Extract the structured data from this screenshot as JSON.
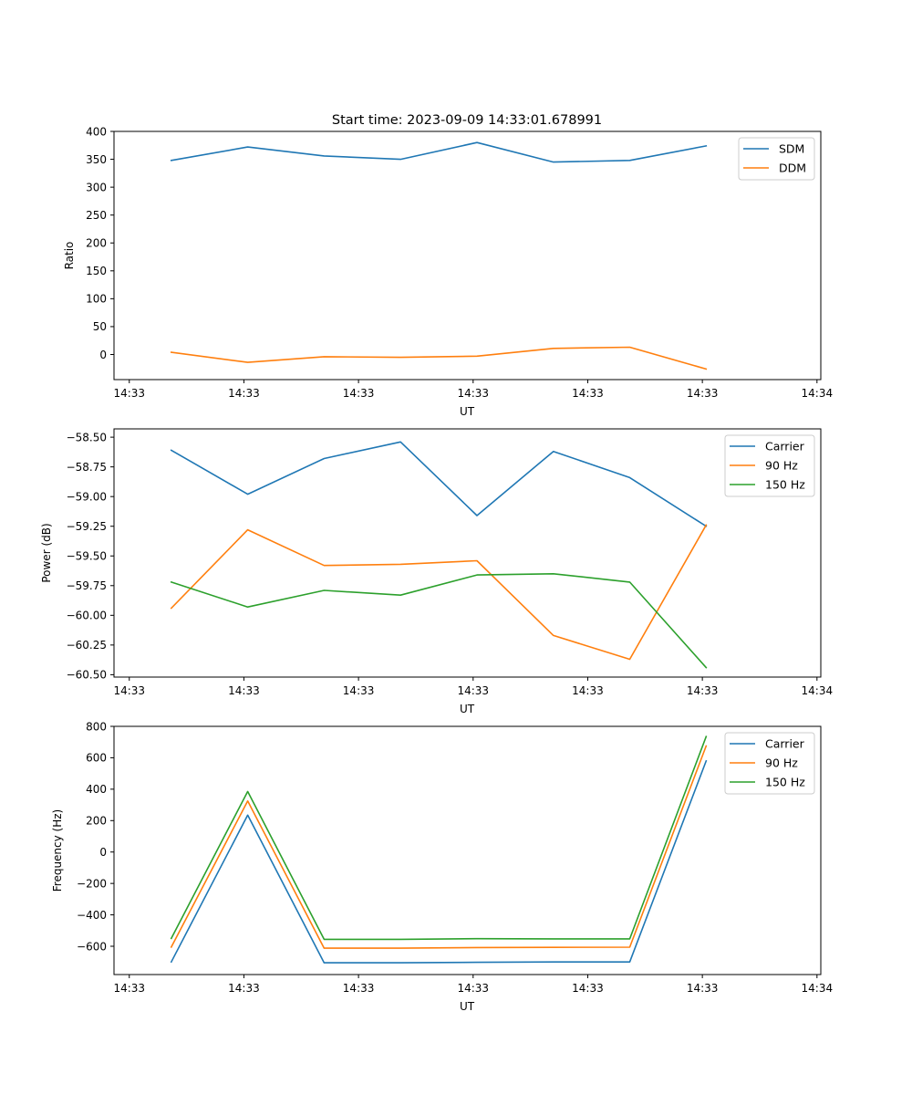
{
  "figure": {
    "title": "Start time: 2023-09-09 14:33:01.678991"
  },
  "colors": {
    "c0": "#1f77b4",
    "c1": "#ff7f0e",
    "c2": "#2ca02c"
  },
  "chart_data": [
    {
      "type": "line",
      "xlabel": "UT",
      "ylabel": "Ratio",
      "xlim": [
        -0.75,
        8.5
      ],
      "ylim": [
        -45,
        400
      ],
      "x_ticks": [
        {
          "v": -0.55,
          "label": "14:33"
        },
        {
          "v": 0.95,
          "label": "14:33"
        },
        {
          "v": 2.45,
          "label": "14:33"
        },
        {
          "v": 3.95,
          "label": "14:33"
        },
        {
          "v": 5.45,
          "label": "14:33"
        },
        {
          "v": 6.95,
          "label": "14:33"
        },
        {
          "v": 8.45,
          "label": "14:34"
        }
      ],
      "y_ticks": [
        {
          "v": 0,
          "label": "0"
        },
        {
          "v": 50,
          "label": "50"
        },
        {
          "v": 100,
          "label": "100"
        },
        {
          "v": 150,
          "label": "150"
        },
        {
          "v": 200,
          "label": "200"
        },
        {
          "v": 250,
          "label": "250"
        },
        {
          "v": 300,
          "label": "300"
        },
        {
          "v": 350,
          "label": "350"
        },
        {
          "v": 400,
          "label": "400"
        }
      ],
      "x": [
        0,
        1,
        2,
        3,
        4,
        5,
        6,
        7
      ],
      "series": [
        {
          "name": "SDM",
          "color": "#1f77b4",
          "values": [
            348,
            372,
            356,
            350,
            380,
            345,
            348,
            374
          ]
        },
        {
          "name": "DDM",
          "color": "#ff7f0e",
          "values": [
            4,
            -14,
            -4,
            -5,
            -3,
            11,
            13,
            -26
          ]
        }
      ],
      "legend": "upper right"
    },
    {
      "type": "line",
      "xlabel": "UT",
      "ylabel": "Power (dB)",
      "xlim": [
        -0.75,
        8.5
      ],
      "ylim": [
        -60.52,
        -58.43
      ],
      "x_ticks": [
        {
          "v": -0.55,
          "label": "14:33"
        },
        {
          "v": 0.95,
          "label": "14:33"
        },
        {
          "v": 2.45,
          "label": "14:33"
        },
        {
          "v": 3.95,
          "label": "14:33"
        },
        {
          "v": 5.45,
          "label": "14:33"
        },
        {
          "v": 6.95,
          "label": "14:33"
        },
        {
          "v": 8.45,
          "label": "14:34"
        }
      ],
      "y_ticks": [
        {
          "v": -60.5,
          "label": "−60.50"
        },
        {
          "v": -60.25,
          "label": "−60.25"
        },
        {
          "v": -60.0,
          "label": "−60.00"
        },
        {
          "v": -59.75,
          "label": "−59.75"
        },
        {
          "v": -59.5,
          "label": "−59.50"
        },
        {
          "v": -59.25,
          "label": "−59.25"
        },
        {
          "v": -59.0,
          "label": "−59.00"
        },
        {
          "v": -58.75,
          "label": "−58.75"
        },
        {
          "v": -58.5,
          "label": "−58.50"
        }
      ],
      "x": [
        0,
        1,
        2,
        3,
        4,
        5,
        6,
        7
      ],
      "series": [
        {
          "name": "Carrier",
          "color": "#1f77b4",
          "values": [
            -58.61,
            -58.98,
            -58.68,
            -58.54,
            -59.16,
            -58.62,
            -58.84,
            -59.25
          ]
        },
        {
          "name": "90 Hz",
          "color": "#ff7f0e",
          "values": [
            -59.94,
            -59.28,
            -59.58,
            -59.57,
            -59.54,
            -60.17,
            -60.37,
            -59.24
          ]
        },
        {
          "name": "150 Hz",
          "color": "#2ca02c",
          "values": [
            -59.72,
            -59.93,
            -59.79,
            -59.83,
            -59.66,
            -59.65,
            -59.72,
            -60.44
          ]
        }
      ],
      "legend": "upper right"
    },
    {
      "type": "line",
      "xlabel": "UT",
      "ylabel": "Frequency (Hz)",
      "xlim": [
        -0.75,
        8.5
      ],
      "ylim": [
        -780,
        800
      ],
      "x_ticks": [
        {
          "v": -0.55,
          "label": "14:33"
        },
        {
          "v": 0.95,
          "label": "14:33"
        },
        {
          "v": 2.45,
          "label": "14:33"
        },
        {
          "v": 3.95,
          "label": "14:33"
        },
        {
          "v": 5.45,
          "label": "14:33"
        },
        {
          "v": 6.95,
          "label": "14:33"
        },
        {
          "v": 8.45,
          "label": "14:34"
        }
      ],
      "y_ticks": [
        {
          "v": -600,
          "label": "−600"
        },
        {
          "v": -400,
          "label": "−400"
        },
        {
          "v": -200,
          "label": "−200"
        },
        {
          "v": 0,
          "label": "0"
        },
        {
          "v": 200,
          "label": "200"
        },
        {
          "v": 400,
          "label": "400"
        },
        {
          "v": 600,
          "label": "600"
        },
        {
          "v": 800,
          "label": "800"
        }
      ],
      "x": [
        0,
        1,
        2,
        3,
        4,
        5,
        6,
        7
      ],
      "series": [
        {
          "name": "Carrier",
          "color": "#1f77b4",
          "values": [
            -700,
            235,
            -705,
            -705,
            -702,
            -700,
            -700,
            580
          ]
        },
        {
          "name": "90 Hz",
          "color": "#ff7f0e",
          "values": [
            -605,
            325,
            -612,
            -612,
            -608,
            -607,
            -606,
            675
          ]
        },
        {
          "name": "150 Hz",
          "color": "#2ca02c",
          "values": [
            -550,
            385,
            -556,
            -556,
            -552,
            -553,
            -553,
            735
          ]
        }
      ],
      "legend": "upper right"
    }
  ]
}
